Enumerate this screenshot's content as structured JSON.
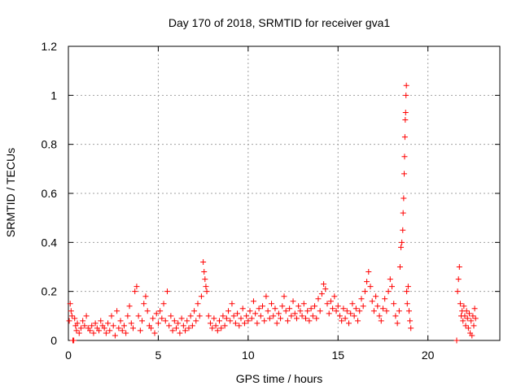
{
  "chart_data": {
    "type": "scatter",
    "title": "Day 170 of 2018, SRMTID for receiver gva1",
    "xlabel": "GPS time / hours",
    "ylabel": "SRMTID / TECUs",
    "xlim": [
      0,
      24
    ],
    "ylim": [
      0,
      1.2
    ],
    "xticks": [
      0,
      5,
      10,
      15,
      20
    ],
    "yticks": [
      0,
      0.2,
      0.4,
      0.6,
      0.8,
      1,
      1.2
    ],
    "xtick_labels": [
      "0",
      "5",
      "10",
      "15",
      "20"
    ],
    "ytick_labels": [
      "0",
      "0.2",
      "0.4",
      "0.6",
      "0.8",
      "1",
      "1.2"
    ],
    "grid": true,
    "marker": "+",
    "color": "#ff0000",
    "series": [
      {
        "name": "gva1",
        "points": [
          [
            0.05,
            0.08
          ],
          [
            0.1,
            0.15
          ],
          [
            0.15,
            0.12
          ],
          [
            0.2,
            0.1
          ],
          [
            0.25,
            0.0
          ],
          [
            0.3,
            0.0
          ],
          [
            0.35,
            0.09
          ],
          [
            0.4,
            0.06
          ],
          [
            0.45,
            0.04
          ],
          [
            0.5,
            0.07
          ],
          [
            0.6,
            0.03
          ],
          [
            0.7,
            0.05
          ],
          [
            0.8,
            0.08
          ],
          [
            0.9,
            0.06
          ],
          [
            1.0,
            0.1
          ],
          [
            1.1,
            0.05
          ],
          [
            1.2,
            0.04
          ],
          [
            1.3,
            0.06
          ],
          [
            1.4,
            0.03
          ],
          [
            1.5,
            0.07
          ],
          [
            1.6,
            0.05
          ],
          [
            1.7,
            0.04
          ],
          [
            1.8,
            0.08
          ],
          [
            1.9,
            0.06
          ],
          [
            2.0,
            0.05
          ],
          [
            2.1,
            0.03
          ],
          [
            2.2,
            0.07
          ],
          [
            2.3,
            0.04
          ],
          [
            2.4,
            0.1
          ],
          [
            2.5,
            0.06
          ],
          [
            2.6,
            0.02
          ],
          [
            2.7,
            0.12
          ],
          [
            2.8,
            0.05
          ],
          [
            2.9,
            0.08
          ],
          [
            3.0,
            0.04
          ],
          [
            3.1,
            0.06
          ],
          [
            3.2,
            0.03
          ],
          [
            3.3,
            0.1
          ],
          [
            3.4,
            0.14
          ],
          [
            3.5,
            0.07
          ],
          [
            3.6,
            0.05
          ],
          [
            3.7,
            0.2
          ],
          [
            3.8,
            0.22
          ],
          [
            3.9,
            0.1
          ],
          [
            4.0,
            0.04
          ],
          [
            4.1,
            0.08
          ],
          [
            4.2,
            0.15
          ],
          [
            4.3,
            0.18
          ],
          [
            4.4,
            0.12
          ],
          [
            4.5,
            0.06
          ],
          [
            4.6,
            0.05
          ],
          [
            4.7,
            0.09
          ],
          [
            4.8,
            0.03
          ],
          [
            4.9,
            0.11
          ],
          [
            5.0,
            0.07
          ],
          [
            5.1,
            0.12
          ],
          [
            5.2,
            0.09
          ],
          [
            5.3,
            0.15
          ],
          [
            5.4,
            0.08
          ],
          [
            5.5,
            0.2
          ],
          [
            5.6,
            0.06
          ],
          [
            5.7,
            0.1
          ],
          [
            5.8,
            0.04
          ],
          [
            5.9,
            0.08
          ],
          [
            6.0,
            0.05
          ],
          [
            6.1,
            0.07
          ],
          [
            6.2,
            0.03
          ],
          [
            6.3,
            0.09
          ],
          [
            6.4,
            0.06
          ],
          [
            6.5,
            0.04
          ],
          [
            6.6,
            0.08
          ],
          [
            6.7,
            0.05
          ],
          [
            6.8,
            0.1
          ],
          [
            6.9,
            0.06
          ],
          [
            7.0,
            0.12
          ],
          [
            7.1,
            0.08
          ],
          [
            7.2,
            0.15
          ],
          [
            7.3,
            0.1
          ],
          [
            7.4,
            0.18
          ],
          [
            7.5,
            0.32
          ],
          [
            7.55,
            0.28
          ],
          [
            7.6,
            0.25
          ],
          [
            7.65,
            0.22
          ],
          [
            7.7,
            0.2
          ],
          [
            7.8,
            0.1
          ],
          [
            7.9,
            0.07
          ],
          [
            8.0,
            0.05
          ],
          [
            8.1,
            0.09
          ],
          [
            8.2,
            0.06
          ],
          [
            8.3,
            0.04
          ],
          [
            8.4,
            0.08
          ],
          [
            8.5,
            0.05
          ],
          [
            8.6,
            0.1
          ],
          [
            8.7,
            0.06
          ],
          [
            8.8,
            0.09
          ],
          [
            8.9,
            0.12
          ],
          [
            9.0,
            0.08
          ],
          [
            9.1,
            0.15
          ],
          [
            9.2,
            0.1
          ],
          [
            9.3,
            0.07
          ],
          [
            9.4,
            0.11
          ],
          [
            9.5,
            0.06
          ],
          [
            9.6,
            0.09
          ],
          [
            9.7,
            0.13
          ],
          [
            9.8,
            0.07
          ],
          [
            9.9,
            0.1
          ],
          [
            10.0,
            0.08
          ],
          [
            10.1,
            0.12
          ],
          [
            10.2,
            0.09
          ],
          [
            10.3,
            0.16
          ],
          [
            10.4,
            0.11
          ],
          [
            10.5,
            0.07
          ],
          [
            10.6,
            0.13
          ],
          [
            10.7,
            0.1
          ],
          [
            10.8,
            0.14
          ],
          [
            10.9,
            0.08
          ],
          [
            11.0,
            0.18
          ],
          [
            11.1,
            0.12
          ],
          [
            11.2,
            0.09
          ],
          [
            11.3,
            0.15
          ],
          [
            11.4,
            0.1
          ],
          [
            11.5,
            0.13
          ],
          [
            11.6,
            0.07
          ],
          [
            11.7,
            0.11
          ],
          [
            11.8,
            0.09
          ],
          [
            11.9,
            0.14
          ],
          [
            12.0,
            0.18
          ],
          [
            12.1,
            0.12
          ],
          [
            12.2,
            0.08
          ],
          [
            12.3,
            0.13
          ],
          [
            12.4,
            0.1
          ],
          [
            12.5,
            0.16
          ],
          [
            12.6,
            0.11
          ],
          [
            12.7,
            0.09
          ],
          [
            12.8,
            0.14
          ],
          [
            12.9,
            0.12
          ],
          [
            13.0,
            0.1
          ],
          [
            13.1,
            0.15
          ],
          [
            13.2,
            0.09
          ],
          [
            13.3,
            0.12
          ],
          [
            13.4,
            0.08
          ],
          [
            13.5,
            0.13
          ],
          [
            13.6,
            0.1
          ],
          [
            13.7,
            0.14
          ],
          [
            13.8,
            0.09
          ],
          [
            13.9,
            0.17
          ],
          [
            14.0,
            0.12
          ],
          [
            14.1,
            0.19
          ],
          [
            14.2,
            0.23
          ],
          [
            14.3,
            0.21
          ],
          [
            14.4,
            0.15
          ],
          [
            14.5,
            0.11
          ],
          [
            14.6,
            0.16
          ],
          [
            14.7,
            0.13
          ],
          [
            14.8,
            0.18
          ],
          [
            14.9,
            0.12
          ],
          [
            15.0,
            0.14
          ],
          [
            15.1,
            0.1
          ],
          [
            15.2,
            0.08
          ],
          [
            15.3,
            0.13
          ],
          [
            15.4,
            0.09
          ],
          [
            15.5,
            0.12
          ],
          [
            15.6,
            0.07
          ],
          [
            15.7,
            0.11
          ],
          [
            15.8,
            0.15
          ],
          [
            15.9,
            0.1
          ],
          [
            16.0,
            0.13
          ],
          [
            16.1,
            0.08
          ],
          [
            16.2,
            0.12
          ],
          [
            16.3,
            0.17
          ],
          [
            16.4,
            0.14
          ],
          [
            16.5,
            0.2
          ],
          [
            16.6,
            0.24
          ],
          [
            16.7,
            0.28
          ],
          [
            16.8,
            0.22
          ],
          [
            16.9,
            0.16
          ],
          [
            17.0,
            0.12
          ],
          [
            17.1,
            0.18
          ],
          [
            17.2,
            0.14
          ],
          [
            17.3,
            0.1
          ],
          [
            17.4,
            0.08
          ],
          [
            17.5,
            0.13
          ],
          [
            17.6,
            0.17
          ],
          [
            17.7,
            0.12
          ],
          [
            17.8,
            0.2
          ],
          [
            17.9,
            0.25
          ],
          [
            18.0,
            0.22
          ],
          [
            18.1,
            0.15
          ],
          [
            18.2,
            0.1
          ],
          [
            18.3,
            0.07
          ],
          [
            18.4,
            0.12
          ],
          [
            18.45,
            0.3
          ],
          [
            18.5,
            0.38
          ],
          [
            18.55,
            0.4
          ],
          [
            18.6,
            0.45
          ],
          [
            18.62,
            0.52
          ],
          [
            18.65,
            0.58
          ],
          [
            18.68,
            0.68
          ],
          [
            18.7,
            0.75
          ],
          [
            18.72,
            0.83
          ],
          [
            18.74,
            0.9
          ],
          [
            18.76,
            0.93
          ],
          [
            18.78,
            1.0
          ],
          [
            18.8,
            1.04
          ],
          [
            18.82,
            0.2
          ],
          [
            18.85,
            0.15
          ],
          [
            18.9,
            0.22
          ],
          [
            18.95,
            0.12
          ],
          [
            19.0,
            0.08
          ],
          [
            19.05,
            0.05
          ],
          [
            21.6,
            0.0
          ],
          [
            21.65,
            0.2
          ],
          [
            21.7,
            0.25
          ],
          [
            21.75,
            0.3
          ],
          [
            21.8,
            0.15
          ],
          [
            21.85,
            0.1
          ],
          [
            21.9,
            0.12
          ],
          [
            21.95,
            0.08
          ],
          [
            22.0,
            0.14
          ],
          [
            22.05,
            0.1
          ],
          [
            22.1,
            0.06
          ],
          [
            22.15,
            0.12
          ],
          [
            22.2,
            0.09
          ],
          [
            22.25,
            0.05
          ],
          [
            22.3,
            0.11
          ],
          [
            22.35,
            0.03
          ],
          [
            22.4,
            0.08
          ],
          [
            22.45,
            0.02
          ],
          [
            22.5,
            0.1
          ],
          [
            22.55,
            0.06
          ],
          [
            22.6,
            0.13
          ],
          [
            22.65,
            0.09
          ]
        ]
      }
    ]
  }
}
